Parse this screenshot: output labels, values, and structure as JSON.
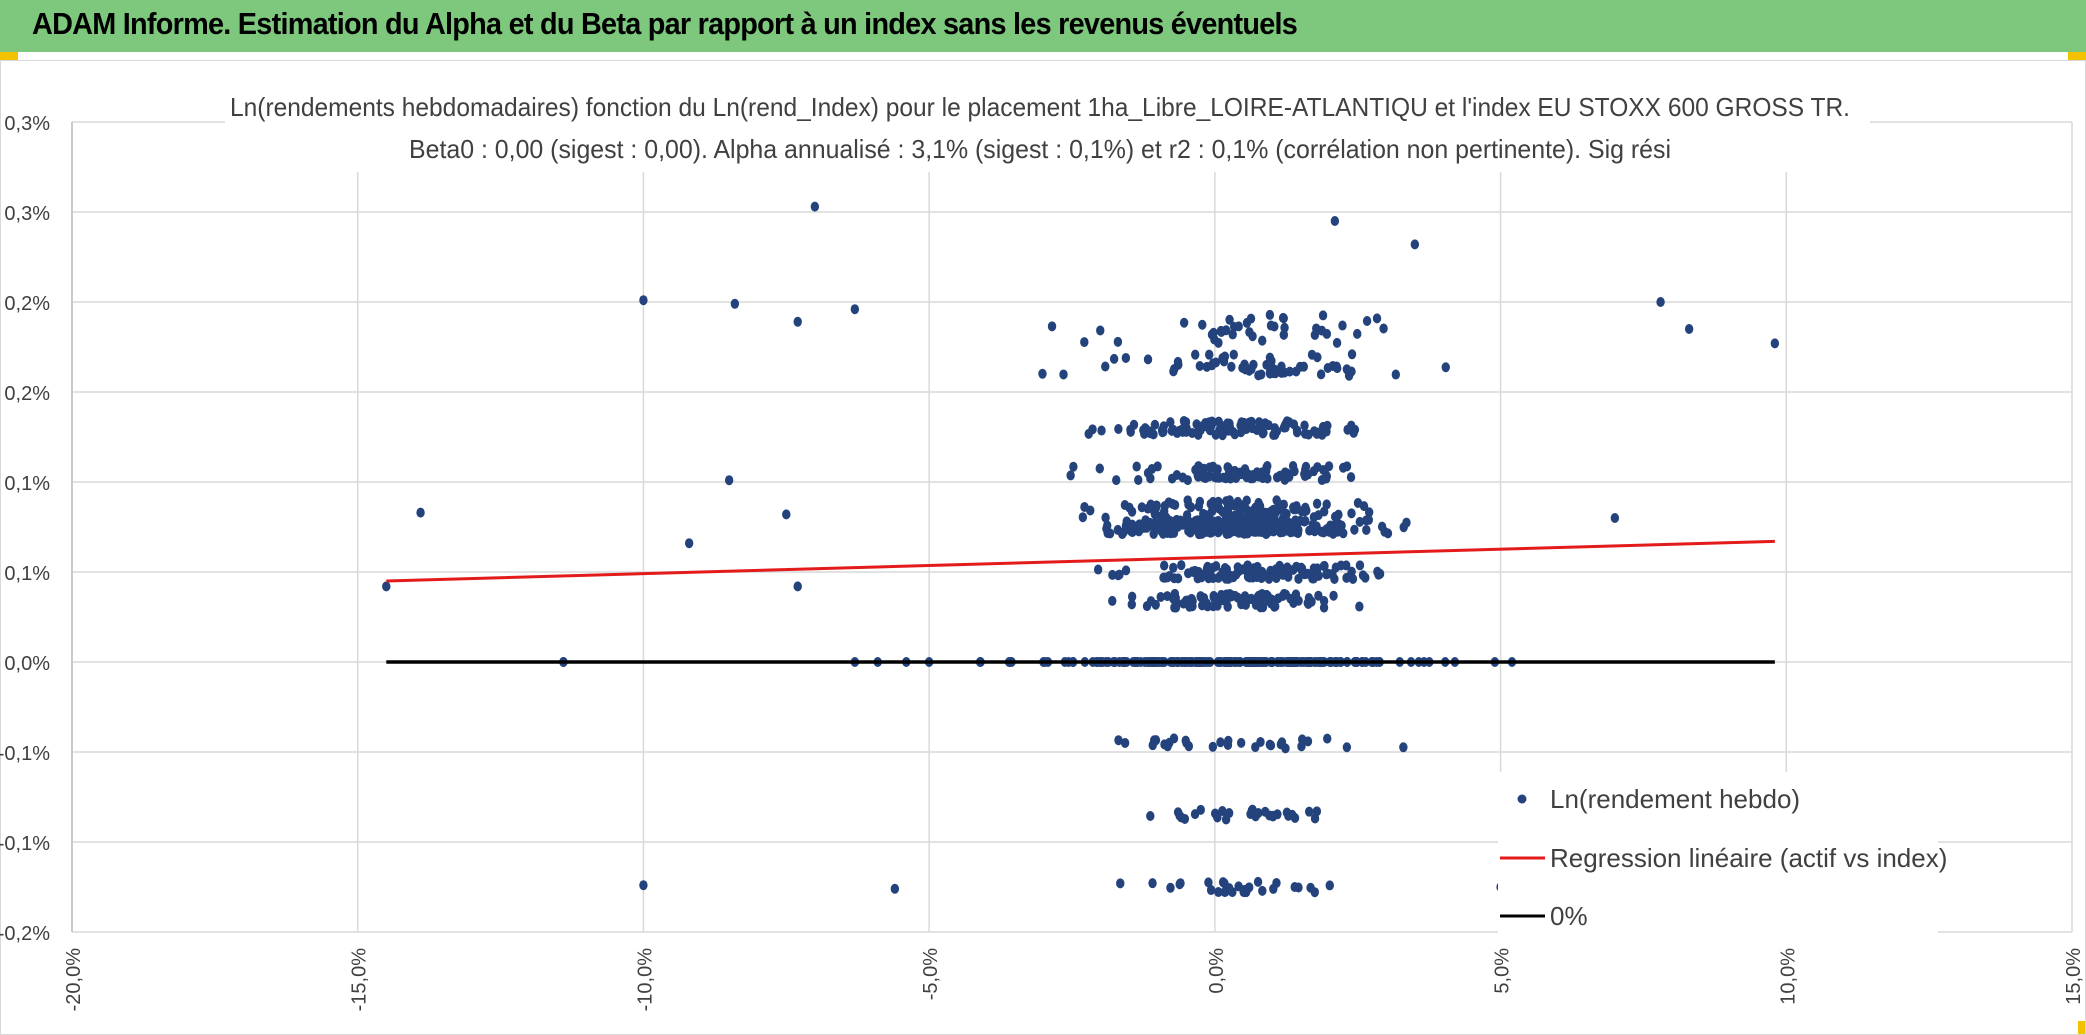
{
  "header": {
    "title": "ADAM Informe. Estimation du Alpha et du Beta par rapport à un index sans les revenus éventuels"
  },
  "colors": {
    "header_bg": "#7ec87e",
    "points": "#24437c",
    "regression": "#e31b1b",
    "zero_line": "#000000",
    "grid": "#d9d9d9"
  },
  "chart_data": {
    "type": "scatter",
    "title_line1": "Ln(rendements hebdomadaires) fonction du Ln(rend_Index) pour le placement 1ha_Libre_LOIRE-ATLANTIQU et l'index EU STOXX 600 GROSS TR.",
    "title_line2": "Beta0 : 0,00 (sigest : 0,00). Alpha annualisé : 3,1% (sigest : 0,1%) et r2 : 0,1% (corrélation non pertinente). Sig rési",
    "xlabel": "",
    "ylabel": "",
    "xlim": [
      -20,
      15
    ],
    "ylim": [
      -0.15,
      0.3
    ],
    "x_ticks": [
      -20,
      -15,
      -10,
      -5,
      0,
      5,
      10,
      15
    ],
    "x_tick_labels": [
      "-20,0%",
      "-15,0%",
      "-10,0%",
      "-5,0%",
      "0,0%",
      "5,0%",
      "10,0%",
      "15,0%"
    ],
    "y_ticks": [
      -0.15,
      -0.1,
      -0.05,
      0,
      0.05,
      0.1,
      0.15,
      0.2,
      0.25,
      0.3
    ],
    "y_tick_labels": [
      "-0,2%",
      "-0,1%",
      "-0,1%",
      "0,0%",
      "0,1%",
      "0,1%",
      "0,2%",
      "0,2%",
      "0,3%",
      "0,3%"
    ],
    "grid": true,
    "legend_position": "bottom-right",
    "series": [
      {
        "name": "Ln(rendement hebdo)",
        "kind": "points",
        "count_description": "about 1000 weekly observations, dense cluster between -3% and +4% of index return, with horizontal bands near 0.05%, 0.1%, 0.15%, 0.2%",
        "notable_points": [
          {
            "x": -14.5,
            "y": 0.042
          },
          {
            "x": -13.9,
            "y": 0.083
          },
          {
            "x": -11.4,
            "y": 0.0
          },
          {
            "x": -10.0,
            "y": 0.201
          },
          {
            "x": -10.0,
            "y": -0.124
          },
          {
            "x": -9.2,
            "y": 0.066
          },
          {
            "x": -8.4,
            "y": 0.199
          },
          {
            "x": -8.5,
            "y": 0.101
          },
          {
            "x": -7.5,
            "y": 0.082
          },
          {
            "x": -7.3,
            "y": 0.189
          },
          {
            "x": -7.3,
            "y": 0.042
          },
          {
            "x": -7.0,
            "y": 0.253
          },
          {
            "x": -6.3,
            "y": 0.196
          },
          {
            "x": -5.6,
            "y": -0.126
          },
          {
            "x": 2.1,
            "y": 0.245
          },
          {
            "x": 3.5,
            "y": 0.232
          },
          {
            "x": 7.0,
            "y": 0.08
          },
          {
            "x": 7.8,
            "y": 0.2
          },
          {
            "x": 8.3,
            "y": 0.185
          },
          {
            "x": 9.8,
            "y": 0.177
          },
          {
            "x": 5.0,
            "y": -0.125
          }
        ]
      },
      {
        "name": "Regression linéaire (actif vs index)",
        "kind": "line",
        "x": [
          -14.5,
          9.8
        ],
        "y": [
          0.045,
          0.067
        ]
      },
      {
        "name": "0%",
        "kind": "line",
        "x": [
          -14.5,
          9.8
        ],
        "y": [
          0,
          0
        ]
      }
    ]
  }
}
